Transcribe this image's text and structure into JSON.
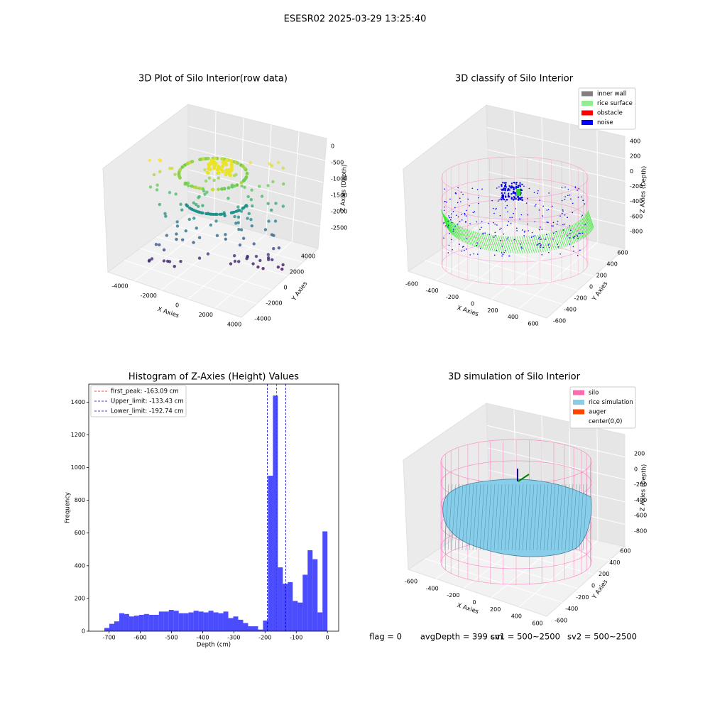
{
  "suptitle": "ESESR02 2025-03-29 13:25:40",
  "footer": [
    "flag = 0",
    "avgDepth = 399 cm",
    "sv1 = 500~2500",
    "sv2 = 500~2500"
  ],
  "chart_data": [
    {
      "type": "scatter3d",
      "title": "3D Plot of Silo Interior(row data)",
      "xlabel": "X Axies",
      "ylabel": "Y Axies",
      "zlabel": "Z Axies (Depth)",
      "xlim": [
        -4000,
        4000
      ],
      "xticks": [
        -4000,
        -2000,
        0,
        2000,
        4000
      ],
      "ylim": [
        -4000,
        4000
      ],
      "yticks": [
        -4000,
        -2000,
        0,
        2000,
        4000
      ],
      "zlim": [
        -2500,
        0
      ],
      "zticks": [
        0,
        -500,
        -1000,
        -1500,
        -2000,
        -2500
      ]
    },
    {
      "type": "classify3d",
      "title": "3D classify of Silo Interior",
      "xlabel": "X Axies",
      "ylabel": "Y Axies",
      "zlabel": "Z Axies (Depth)",
      "xlim": [
        -600,
        600
      ],
      "xticks": [
        -600,
        -400,
        -200,
        0,
        200,
        400,
        600
      ],
      "ylim": [
        -600,
        600
      ],
      "yticks": [
        -600,
        -400,
        -200,
        0,
        200,
        400,
        600
      ],
      "zlim": [
        -800,
        400
      ],
      "zticks": [
        400,
        200,
        0,
        -200,
        -400,
        -600,
        -800
      ],
      "series": [
        {
          "name": "inner wall",
          "color": "#808080"
        },
        {
          "name": "rice surface",
          "color": "#90ee90"
        },
        {
          "name": "obstacle",
          "color": "#ff0000"
        },
        {
          "name": "noise",
          "color": "#0000ff"
        }
      ]
    },
    {
      "type": "histogram",
      "title": "Histogram of Z-Axies (Height) Values",
      "xlabel": "Depth (cm)",
      "ylabel": "Frequency",
      "color": "#0000ff",
      "bins": [
        -715,
        -699.1,
        -683.2,
        -667.3,
        -651.4,
        -635.6,
        -619.7,
        -603.8,
        -587.9,
        -572.0,
        -556.1,
        -540.2,
        -524.3,
        -508.4,
        -492.5,
        -476.7,
        -460.8,
        -444.9,
        -429.0,
        -413.1,
        -397.2,
        -381.3,
        -365.4,
        -349.5,
        -333.6,
        -317.8,
        -301.9,
        -286.0,
        -270.1,
        -254.2,
        -238.3,
        -222.4,
        -206.5,
        -190.6,
        -174.7,
        -158.9,
        -143.0,
        -127.1,
        -111.2,
        -95.3,
        -79.4,
        -63.5,
        -47.6,
        -31.7,
        -15.8,
        0
      ],
      "values": [
        20,
        45,
        60,
        110,
        105,
        90,
        95,
        100,
        105,
        100,
        100,
        120,
        120,
        130,
        125,
        110,
        110,
        115,
        125,
        120,
        115,
        125,
        115,
        110,
        120,
        80,
        90,
        70,
        50,
        30,
        30,
        10,
        65,
        950,
        1440,
        390,
        290,
        300,
        185,
        175,
        345,
        495,
        440,
        115,
        610
      ],
      "xlim": [
        -765,
        36
      ],
      "xticks": [
        -700,
        -600,
        -500,
        -400,
        -300,
        -200,
        -100,
        0
      ],
      "ylim": [
        0,
        1510
      ],
      "yticks": [
        0,
        200,
        400,
        600,
        800,
        1000,
        1200,
        1400
      ],
      "vlines": [
        {
          "name": "first_peak: -163.09 cm",
          "value": -163.09,
          "color": "#ff0000"
        },
        {
          "name": "Upper_limit: -133.43 cm",
          "value": -133.43,
          "color": "#0000cc"
        },
        {
          "name": "Lower_limit: -192.74 cm",
          "value": -192.74,
          "color": "#0000cc"
        }
      ]
    },
    {
      "type": "surface3d",
      "title": "3D simulation of Silo Interior",
      "xlabel": "X Axies",
      "ylabel": "Y Axies",
      "zlabel": "Z Axies (Depth)",
      "xlim": [
        -600,
        600
      ],
      "xticks": [
        -600,
        -400,
        -200,
        0,
        200,
        400,
        600
      ],
      "ylim": [
        -600,
        600
      ],
      "yticks": [
        -600,
        -400,
        -200,
        0,
        200,
        400,
        600
      ],
      "zlim": [
        -800,
        200
      ],
      "zticks": [
        200,
        0,
        -200,
        -400,
        -600,
        -800
      ],
      "series": [
        {
          "name": "silo",
          "color": "#ff69b4"
        },
        {
          "name": "rice simulation",
          "color": "#87ceeb"
        },
        {
          "name": "auger",
          "color": "#ff4500"
        },
        {
          "name": "center(0,0)",
          "color": "#ffffff"
        }
      ]
    }
  ]
}
